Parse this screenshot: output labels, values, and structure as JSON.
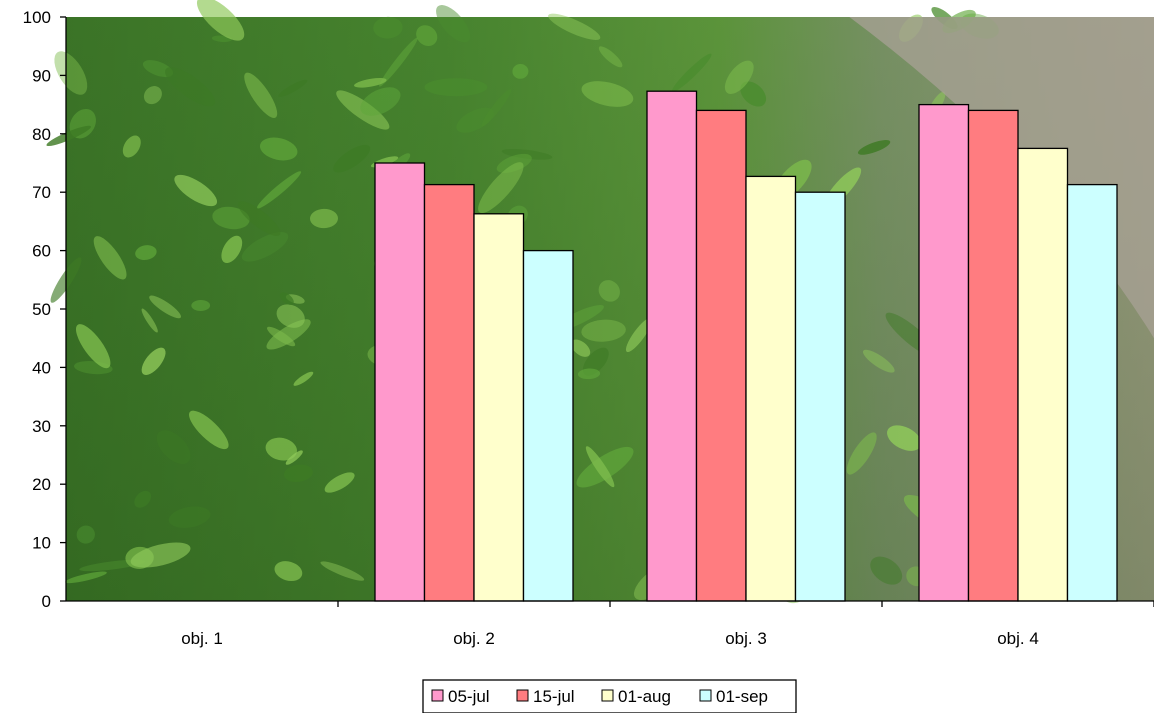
{
  "colors": {
    "05-jul": "#ff99cc",
    "15-jul": "#ff7c80",
    "01-aug": "#ffffcc",
    "01-sep": "#ccffff",
    "bar_stroke": "#000000",
    "axis": "#000000"
  },
  "background": "photo of green tobacco plants in a field with a dirt path",
  "chart_data": {
    "type": "bar",
    "title": "",
    "xlabel": "",
    "ylabel": "",
    "ylim": [
      0,
      100
    ],
    "yticks": [
      0,
      10,
      20,
      30,
      40,
      50,
      60,
      70,
      80,
      90,
      100
    ],
    "grid": false,
    "legend_position": "bottom",
    "categories": [
      "obj. 1",
      "obj. 2",
      "obj. 3",
      "obj. 4"
    ],
    "series": [
      {
        "name": "05-jul",
        "values": [
          null,
          75,
          87.3,
          85
        ]
      },
      {
        "name": "15-jul",
        "values": [
          null,
          71.3,
          84,
          84
        ]
      },
      {
        "name": "01-aug",
        "values": [
          null,
          66.3,
          72.7,
          77.5
        ]
      },
      {
        "name": "01-sep",
        "values": [
          null,
          60,
          70,
          71.3
        ]
      }
    ]
  }
}
